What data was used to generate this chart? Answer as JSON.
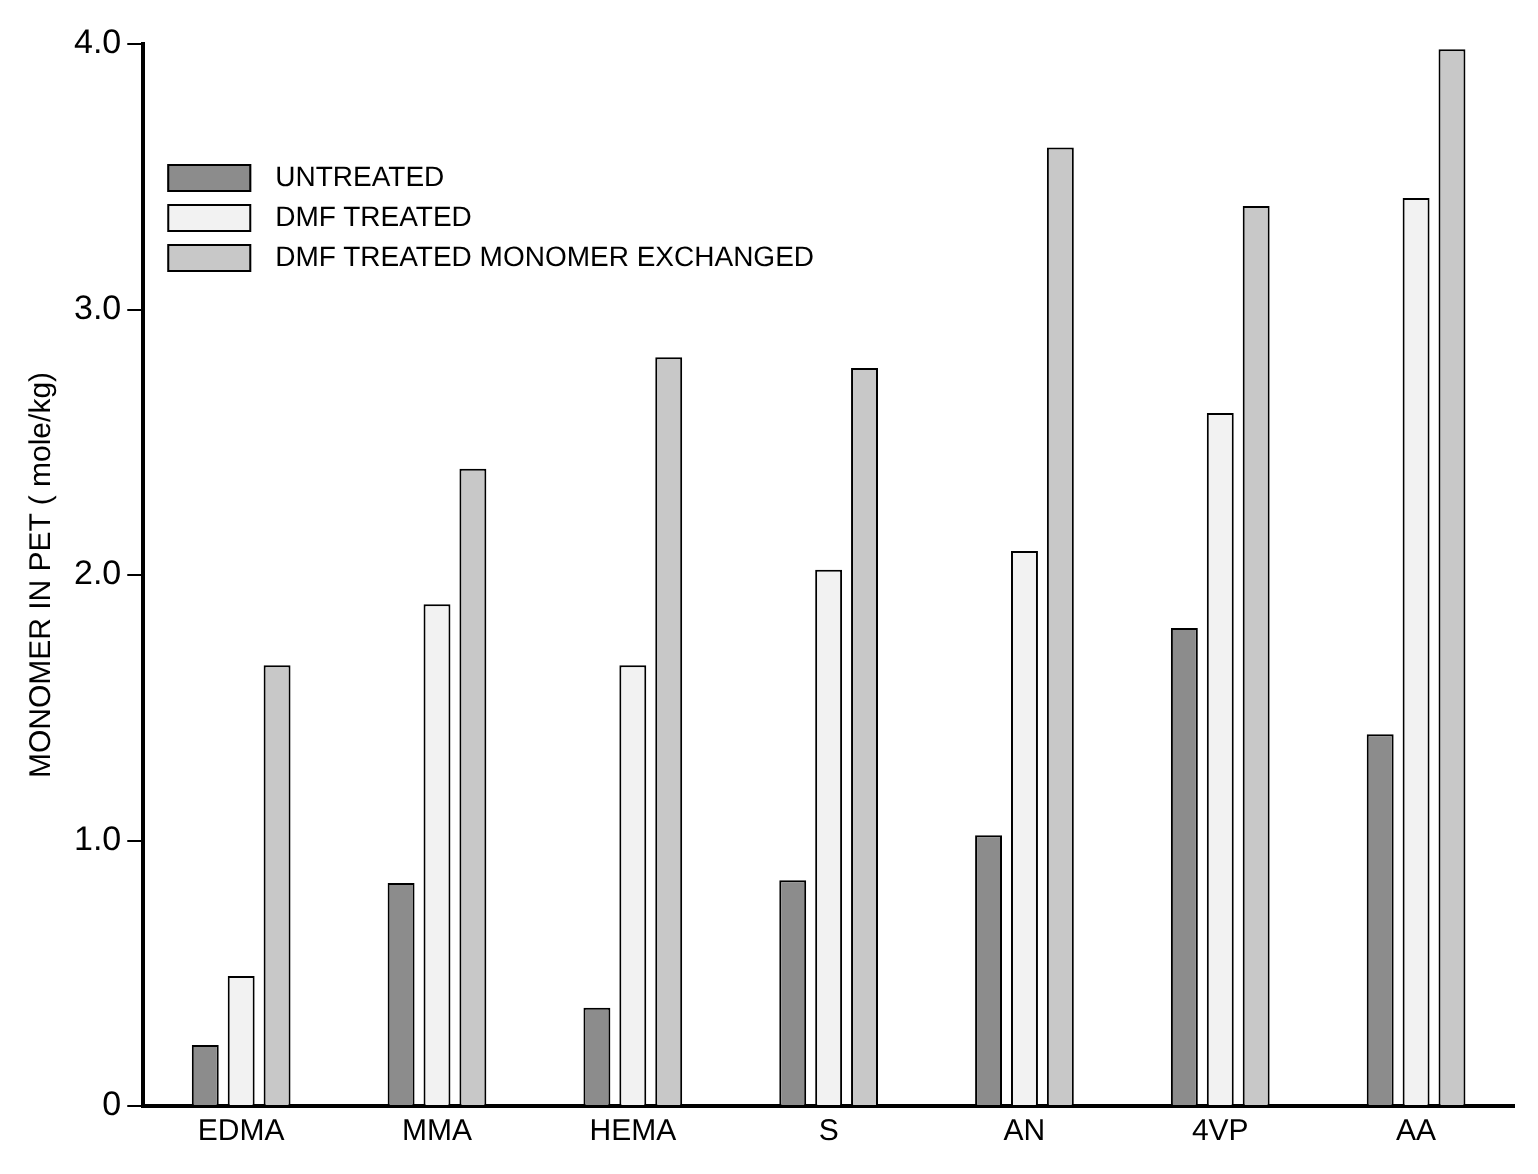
{
  "chart_data": {
    "type": "bar",
    "ylabel": "MONOMER IN PET ( mole/kg)",
    "categories": [
      "EDMA",
      "MMA",
      "HEMA",
      "S",
      "AN",
      "4VP",
      "AA"
    ],
    "series": [
      {
        "name": "UNTREATED",
        "color": "#8c8c8c",
        "values": [
          0.23,
          0.84,
          0.37,
          0.85,
          1.02,
          1.8,
          1.4
        ]
      },
      {
        "name": "DMF TREATED",
        "color": "#f2f2f2",
        "values": [
          0.49,
          1.89,
          1.66,
          2.02,
          2.09,
          2.61,
          3.42
        ]
      },
      {
        "name": "DMF TREATED MONOMER EXCHANGED",
        "color": "#c8c8c8",
        "values": [
          1.66,
          2.4,
          2.82,
          2.78,
          3.61,
          3.39,
          3.98
        ]
      }
    ],
    "ylim": [
      0,
      4
    ],
    "yticks": [
      0,
      {
        "value": 1,
        "label": "1.0"
      },
      {
        "value": 2,
        "label": "2.0"
      },
      {
        "value": 3,
        "label": "3.0"
      },
      {
        "value": 4,
        "label": "4.0"
      }
    ],
    "grid": false,
    "legend": "top left"
  }
}
